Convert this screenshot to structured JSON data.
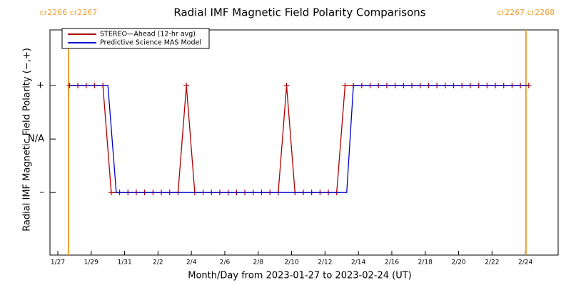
{
  "chart_data": {
    "type": "line",
    "title": "Radial IMF Magnetic Field Polarity Comparisons",
    "x_label": "Month/Day from 2023-01-27 to 2023-02-24 (UT)",
    "y_label": "Radial IMF Magnetic Field Polarity (−,+)",
    "xlim": [
      -0.47,
      29.96
    ],
    "ylim": [
      -2.17,
      2.04
    ],
    "xticks": [
      {
        "value": 0,
        "label": "1/27"
      },
      {
        "value": 2,
        "label": "1/29"
      },
      {
        "value": 4,
        "label": "1/31"
      },
      {
        "value": 6,
        "label": "2/2"
      },
      {
        "value": 8,
        "label": "2/4"
      },
      {
        "value": 10,
        "label": "2/6"
      },
      {
        "value": 12,
        "label": "2/8"
      },
      {
        "value": 14,
        "label": "2/10"
      },
      {
        "value": 16,
        "label": "2/12"
      },
      {
        "value": 18,
        "label": "2/14"
      },
      {
        "value": 20,
        "label": "2/16"
      },
      {
        "value": 22,
        "label": "2/18"
      },
      {
        "value": 24,
        "label": "2/20"
      },
      {
        "value": 26,
        "label": "2/22"
      },
      {
        "value": 28,
        "label": "2/24"
      }
    ],
    "yticks": [
      {
        "value": 1,
        "label": "+"
      },
      {
        "value": 0,
        "label": "N/A"
      },
      {
        "value": -1,
        "label": "–"
      }
    ],
    "vlines": [
      {
        "x": 0.64,
        "label": "cr2266 cr2267",
        "color": "#f0a030"
      },
      {
        "x": 28.03,
        "label": "cr2267 cr2268",
        "color": "#f0a030"
      }
    ],
    "legend": "upper left",
    "series": [
      {
        "name": "STEREO—Ahead (12-hr avg)",
        "color": "#b00000",
        "marker": "+",
        "x": [
          0.7,
          1.2,
          1.7,
          2.2,
          2.7,
          3.2,
          3.7,
          4.2,
          4.7,
          5.2,
          5.7,
          6.2,
          6.7,
          7.2,
          7.7,
          8.2,
          8.7,
          9.2,
          9.7,
          10.2,
          10.7,
          11.2,
          11.7,
          12.2,
          12.7,
          13.2,
          13.7,
          14.2,
          14.7,
          15.2,
          15.7,
          16.2,
          16.7,
          17.2,
          17.7,
          18.2,
          18.7,
          19.2,
          19.7,
          20.2,
          20.7,
          21.2,
          21.7,
          22.2,
          22.7,
          23.2,
          23.7,
          24.2,
          24.7,
          25.2,
          25.7,
          26.2,
          26.7,
          27.2,
          27.7,
          28.2
        ],
        "values": [
          1,
          1,
          1,
          1,
          1,
          -1,
          -1,
          -1,
          -1,
          -1,
          -1,
          -1,
          -1,
          -1,
          1,
          -1,
          -1,
          -1,
          -1,
          -1,
          -1,
          -1,
          -1,
          -1,
          -1,
          -1,
          1,
          -1,
          -1,
          -1,
          -1,
          -1,
          -1,
          1,
          1,
          1,
          1,
          1,
          1,
          1,
          1,
          1,
          1,
          1,
          1,
          1,
          1,
          1,
          1,
          1,
          1,
          1,
          1,
          1,
          1,
          1
        ]
      },
      {
        "name": "Predictive Science MAS Model",
        "color": "#0000cc",
        "x": [
          0.7,
          3.0,
          3.5,
          17.3,
          17.7,
          28.2
        ],
        "values": [
          1,
          1,
          -1,
          -1,
          1,
          1
        ]
      }
    ]
  }
}
